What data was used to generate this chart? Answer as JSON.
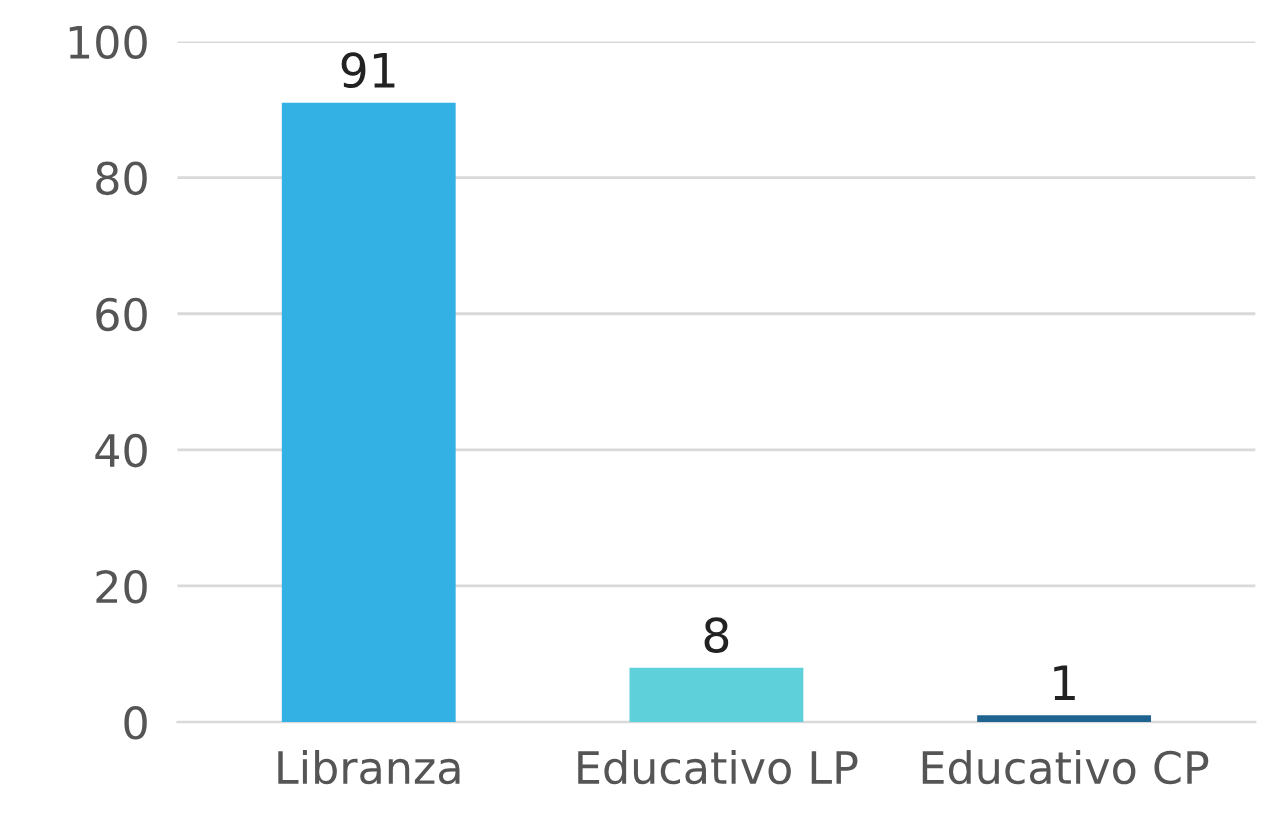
{
  "chart_data": {
    "type": "bar",
    "categories": [
      "Libranza",
      "Educativo LP",
      "Educativo CP"
    ],
    "values": [
      91,
      8,
      1
    ],
    "colors": [
      "#33b1e4",
      "#5ed0da",
      "#1f6391"
    ],
    "ylim": [
      0,
      100
    ],
    "yticks": [
      0,
      20,
      40,
      60,
      80,
      100
    ],
    "grid": "y",
    "data_labels": true
  }
}
